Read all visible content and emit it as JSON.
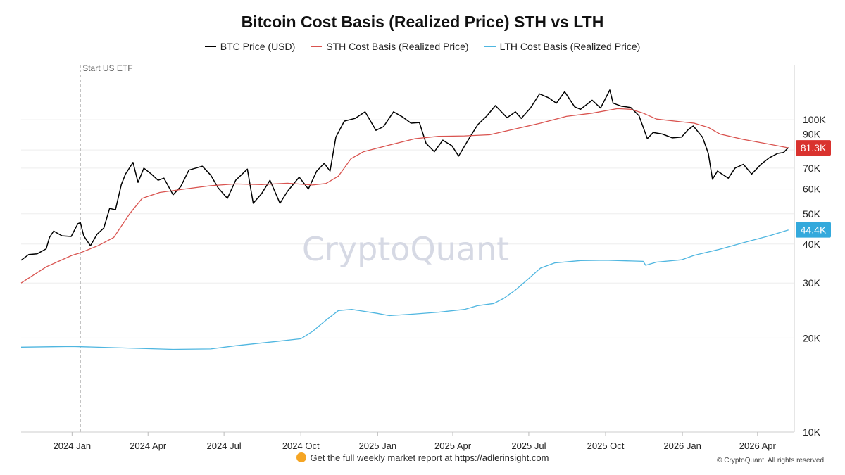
{
  "chart_data": {
    "type": "line",
    "title": "Bitcoin Cost Basis (Realized Price) STH vs LTH",
    "y_scale": "log",
    "ylim": [
      10000,
      150000
    ],
    "xlim": [
      "2023-11-01",
      "2026-05-15"
    ],
    "grid": true,
    "legend_position": "top",
    "x_tick_labels": [
      "2024 Jan",
      "2024 Apr",
      "2024 Jul",
      "2024 Oct",
      "2025 Jan",
      "2025 Apr",
      "2025 Jul",
      "2025 Oct",
      "2026 Jan",
      "2026 Apr"
    ],
    "x_ticks": [
      "2024-01-01",
      "2024-04-01",
      "2024-07-01",
      "2024-10-01",
      "2025-01-01",
      "2025-04-01",
      "2025-07-01",
      "2025-10-01",
      "2026-01-01",
      "2026-04-01"
    ],
    "y_tick_labels": [
      "100K",
      "90K",
      "80K",
      "70K",
      "60K",
      "50K",
      "40K",
      "30K",
      "20K",
      "10K"
    ],
    "y_ticks": [
      100000,
      90000,
      80000,
      70000,
      60000,
      50000,
      40000,
      30000,
      20000,
      10000
    ],
    "annotation": {
      "label": "Start US ETF",
      "date": "2024-01-11"
    },
    "watermark": "CryptoQuant",
    "series": [
      {
        "name": "BTC Price (USD)",
        "color": "#000000",
        "points": [
          [
            "2023-11-01",
            35500
          ],
          [
            "2023-11-10",
            37000
          ],
          [
            "2023-11-20",
            37200
          ],
          [
            "2023-12-01",
            38600
          ],
          [
            "2023-12-05",
            42000
          ],
          [
            "2023-12-10",
            44000
          ],
          [
            "2023-12-20",
            42500
          ],
          [
            "2023-12-31",
            42300
          ],
          [
            "2024-01-08",
            46500
          ],
          [
            "2024-01-11",
            46800
          ],
          [
            "2024-01-15",
            42500
          ],
          [
            "2024-01-23",
            39500
          ],
          [
            "2024-01-31",
            43000
          ],
          [
            "2024-02-08",
            45000
          ],
          [
            "2024-02-15",
            52000
          ],
          [
            "2024-02-22",
            51500
          ],
          [
            "2024-02-29",
            62000
          ],
          [
            "2024-03-05",
            67000
          ],
          [
            "2024-03-14",
            73000
          ],
          [
            "2024-03-20",
            63000
          ],
          [
            "2024-03-27",
            70000
          ],
          [
            "2024-04-05",
            67000
          ],
          [
            "2024-04-13",
            64000
          ],
          [
            "2024-04-20",
            65000
          ],
          [
            "2024-05-01",
            57500
          ],
          [
            "2024-05-10",
            61000
          ],
          [
            "2024-05-20",
            69000
          ],
          [
            "2024-06-05",
            71000
          ],
          [
            "2024-06-15",
            66500
          ],
          [
            "2024-06-24",
            60500
          ],
          [
            "2024-07-05",
            56000
          ],
          [
            "2024-07-15",
            64000
          ],
          [
            "2024-07-29",
            69500
          ],
          [
            "2024-08-05",
            54000
          ],
          [
            "2024-08-15",
            58000
          ],
          [
            "2024-08-25",
            64000
          ],
          [
            "2024-09-06",
            54000
          ],
          [
            "2024-09-15",
            59000
          ],
          [
            "2024-09-29",
            65500
          ],
          [
            "2024-10-10",
            60000
          ],
          [
            "2024-10-20",
            68500
          ],
          [
            "2024-10-29",
            72500
          ],
          [
            "2024-11-05",
            68500
          ],
          [
            "2024-11-12",
            88000
          ],
          [
            "2024-11-22",
            99000
          ],
          [
            "2024-12-05",
            101000
          ],
          [
            "2024-12-17",
            106000
          ],
          [
            "2024-12-30",
            92500
          ],
          [
            "2025-01-08",
            95000
          ],
          [
            "2025-01-20",
            106000
          ],
          [
            "2025-01-31",
            102000
          ],
          [
            "2025-02-10",
            97500
          ],
          [
            "2025-02-20",
            98000
          ],
          [
            "2025-02-28",
            84000
          ],
          [
            "2025-03-10",
            79000
          ],
          [
            "2025-03-20",
            86000
          ],
          [
            "2025-03-31",
            82500
          ],
          [
            "2025-04-08",
            76500
          ],
          [
            "2025-04-21",
            87500
          ],
          [
            "2025-05-01",
            96500
          ],
          [
            "2025-05-12",
            103000
          ],
          [
            "2025-05-22",
            111000
          ],
          [
            "2025-06-05",
            101500
          ],
          [
            "2025-06-15",
            106000
          ],
          [
            "2025-06-22",
            101000
          ],
          [
            "2025-07-03",
            109000
          ],
          [
            "2025-07-14",
            121000
          ],
          [
            "2025-07-25",
            117500
          ],
          [
            "2025-08-03",
            113000
          ],
          [
            "2025-08-13",
            123000
          ],
          [
            "2025-08-25",
            110000
          ],
          [
            "2025-09-01",
            108000
          ],
          [
            "2025-09-15",
            115500
          ],
          [
            "2025-09-25",
            109000
          ],
          [
            "2025-10-06",
            124500
          ],
          [
            "2025-10-10",
            113000
          ],
          [
            "2025-10-20",
            110500
          ],
          [
            "2025-10-31",
            109500
          ],
          [
            "2025-11-10",
            103000
          ],
          [
            "2025-11-20",
            87000
          ],
          [
            "2025-11-27",
            91000
          ],
          [
            "2025-12-08",
            90000
          ],
          [
            "2025-12-20",
            87500
          ],
          [
            "2025-12-31",
            88000
          ],
          [
            "2026-01-08",
            93000
          ],
          [
            "2026-01-14",
            95500
          ],
          [
            "2026-01-25",
            88000
          ],
          [
            "2026-02-01",
            78000
          ],
          [
            "2026-02-06",
            64500
          ],
          [
            "2026-02-12",
            68500
          ],
          [
            "2026-02-25",
            65000
          ],
          [
            "2026-03-05",
            70000
          ],
          [
            "2026-03-15",
            72000
          ],
          [
            "2026-03-25",
            67000
          ],
          [
            "2026-04-05",
            72000
          ],
          [
            "2026-04-15",
            75500
          ],
          [
            "2026-04-25",
            78000
          ],
          [
            "2026-05-02",
            78500
          ],
          [
            "2026-05-08",
            81500
          ]
        ]
      },
      {
        "name": "STH Cost Basis (Realized Price)",
        "color": "#d9534f",
        "points": [
          [
            "2023-11-01",
            30000
          ],
          [
            "2023-12-01",
            33800
          ],
          [
            "2024-01-01",
            36800
          ],
          [
            "2024-01-11",
            37500
          ],
          [
            "2024-02-01",
            39500
          ],
          [
            "2024-02-20",
            42000
          ],
          [
            "2024-03-10",
            50000
          ],
          [
            "2024-03-25",
            56000
          ],
          [
            "2024-04-15",
            58500
          ],
          [
            "2024-05-15",
            60000
          ],
          [
            "2024-06-15",
            61500
          ],
          [
            "2024-07-15",
            62300
          ],
          [
            "2024-08-15",
            62000
          ],
          [
            "2024-09-15",
            62600
          ],
          [
            "2024-10-15",
            61800
          ],
          [
            "2024-10-31",
            62500
          ],
          [
            "2024-11-15",
            66000
          ],
          [
            "2024-11-30",
            75000
          ],
          [
            "2024-12-15",
            79000
          ],
          [
            "2025-01-15",
            83000
          ],
          [
            "2025-02-15",
            87000
          ],
          [
            "2025-03-15",
            88500
          ],
          [
            "2025-04-15",
            88800
          ],
          [
            "2025-05-15",
            89500
          ],
          [
            "2025-06-15",
            93500
          ],
          [
            "2025-07-15",
            97500
          ],
          [
            "2025-08-15",
            102500
          ],
          [
            "2025-09-15",
            105000
          ],
          [
            "2025-10-15",
            108500
          ],
          [
            "2025-10-31",
            108000
          ],
          [
            "2025-11-15",
            105000
          ],
          [
            "2025-12-01",
            100500
          ],
          [
            "2025-12-31",
            98500
          ],
          [
            "2026-01-15",
            97500
          ],
          [
            "2026-02-01",
            94500
          ],
          [
            "2026-02-15",
            90000
          ],
          [
            "2026-03-15",
            86500
          ],
          [
            "2026-04-15",
            83500
          ],
          [
            "2026-05-08",
            81300
          ]
        ]
      },
      {
        "name": "LTH Cost Basis (Realized Price)",
        "color": "#4fb6e0",
        "points": [
          [
            "2023-11-01",
            18700
          ],
          [
            "2024-01-01",
            18800
          ],
          [
            "2024-03-01",
            18600
          ],
          [
            "2024-05-01",
            18400
          ],
          [
            "2024-06-15",
            18450
          ],
          [
            "2024-07-15",
            18900
          ],
          [
            "2024-09-01",
            19500
          ],
          [
            "2024-10-01",
            19900
          ],
          [
            "2024-10-15",
            21000
          ],
          [
            "2024-10-31",
            22800
          ],
          [
            "2024-11-15",
            24500
          ],
          [
            "2024-12-01",
            24700
          ],
          [
            "2024-12-31",
            24000
          ],
          [
            "2025-01-15",
            23600
          ],
          [
            "2025-02-15",
            23900
          ],
          [
            "2025-03-15",
            24200
          ],
          [
            "2025-04-15",
            24700
          ],
          [
            "2025-05-01",
            25400
          ],
          [
            "2025-05-20",
            25800
          ],
          [
            "2025-06-01",
            26800
          ],
          [
            "2025-06-15",
            28500
          ],
          [
            "2025-07-01",
            31000
          ],
          [
            "2025-07-15",
            33500
          ],
          [
            "2025-08-01",
            34800
          ],
          [
            "2025-09-01",
            35400
          ],
          [
            "2025-10-01",
            35500
          ],
          [
            "2025-11-01",
            35300
          ],
          [
            "2025-11-15",
            35200
          ],
          [
            "2025-11-18",
            34200
          ],
          [
            "2025-12-01",
            35000
          ],
          [
            "2025-12-31",
            35600
          ],
          [
            "2026-01-15",
            36800
          ],
          [
            "2026-02-15",
            38500
          ],
          [
            "2026-03-15",
            40400
          ],
          [
            "2026-04-15",
            42500
          ],
          [
            "2026-05-08",
            44400
          ]
        ]
      }
    ],
    "end_labels": [
      {
        "series": "STH Cost Basis (Realized Price)",
        "text": "81.3K",
        "value": 81300,
        "color": "#d9322e"
      },
      {
        "series": "LTH Cost Basis (Realized Price)",
        "text": "44.4K",
        "value": 44400,
        "color": "#33a9dc"
      }
    ]
  },
  "legend": {
    "items": [
      {
        "label": "BTC Price (USD)",
        "color": "#000000"
      },
      {
        "label": "STH Cost Basis (Realized Price)",
        "color": "#d9534f"
      },
      {
        "label": "LTH Cost Basis (Realized Price)",
        "color": "#4fb6e0"
      }
    ]
  },
  "footer": {
    "text": "Get the full weekly market report at",
    "link": "https://adlerinsight.com",
    "copyright": "© CryptoQuant. All rights reserved"
  }
}
